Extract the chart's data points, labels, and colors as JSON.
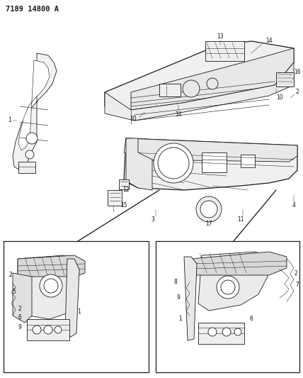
{
  "title": "7189 14800 A",
  "background_color": "#ffffff",
  "line_color": "#1a1a1a",
  "figsize": [
    4.28,
    5.33
  ],
  "dpi": 100,
  "title_fontsize": 7.5,
  "label_fontsize": 5.5,
  "label_color": "#111111"
}
